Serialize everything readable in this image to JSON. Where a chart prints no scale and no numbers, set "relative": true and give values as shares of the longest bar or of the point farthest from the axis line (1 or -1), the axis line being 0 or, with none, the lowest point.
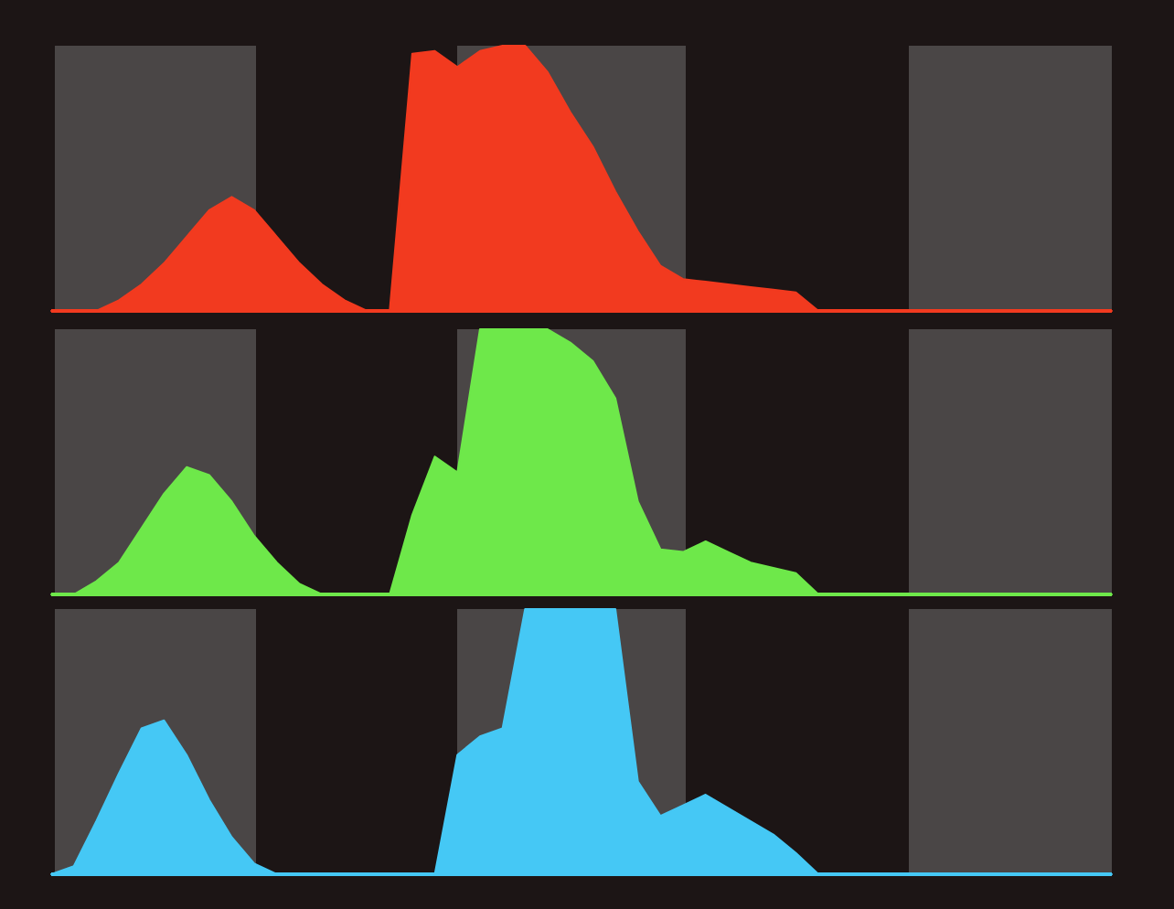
{
  "chart_data": [
    {
      "type": "area",
      "relative": true,
      "categories": [
        null,
        null,
        null,
        null,
        null,
        null,
        null,
        null,
        null,
        null,
        null,
        null,
        null,
        null,
        null,
        null,
        null,
        null,
        null,
        null,
        null,
        null,
        null,
        null,
        null,
        null,
        null,
        null,
        null,
        null,
        null,
        null,
        null,
        null,
        null,
        null,
        null,
        null,
        null,
        null,
        null,
        null,
        null,
        null,
        null,
        null,
        null,
        null
      ],
      "series": [
        {
          "color": "#f23a1f",
          "values": [
            0,
            0,
            0,
            0.04,
            0.1,
            0.18,
            0.28,
            0.38,
            0.43,
            0.38,
            0.28,
            0.18,
            0.1,
            0.04,
            0,
            0,
            0.97,
            0.98,
            0.92,
            0.98,
            1,
            1,
            0.9,
            0.75,
            0.62,
            0.45,
            0.3,
            0.17,
            0.12,
            0.11,
            0.1,
            0.09,
            0.08,
            0.07,
            0,
            0,
            0,
            0,
            0,
            0,
            0,
            0,
            0,
            0,
            0,
            0,
            0,
            0
          ]
        }
      ]
    },
    {
      "type": "area",
      "relative": true,
      "categories": [
        null,
        null,
        null,
        null,
        null,
        null,
        null,
        null,
        null,
        null,
        null,
        null,
        null,
        null,
        null,
        null,
        null,
        null,
        null,
        null,
        null,
        null,
        null,
        null,
        null,
        null,
        null,
        null,
        null,
        null,
        null,
        null,
        null,
        null,
        null,
        null,
        null,
        null,
        null,
        null,
        null,
        null,
        null,
        null,
        null,
        null,
        null,
        null
      ],
      "series": [
        {
          "color": "#6ee84a",
          "values": [
            0,
            0,
            0.05,
            0.12,
            0.25,
            0.38,
            0.48,
            0.45,
            0.35,
            0.22,
            0.12,
            0.04,
            0,
            0,
            0,
            0,
            0.3,
            0.52,
            0.46,
            1,
            1,
            1,
            1,
            0.95,
            0.88,
            0.74,
            0.35,
            0.17,
            0.16,
            0.2,
            0.16,
            0.12,
            0.1,
            0.08,
            0,
            0,
            0,
            0,
            0,
            0,
            0,
            0,
            0,
            0,
            0,
            0,
            0,
            0
          ]
        }
      ]
    },
    {
      "type": "area",
      "relative": true,
      "categories": [
        null,
        null,
        null,
        null,
        null,
        null,
        null,
        null,
        null,
        null,
        null,
        null,
        null,
        null,
        null,
        null,
        null,
        null,
        null,
        null,
        null,
        null,
        null,
        null,
        null,
        null,
        null,
        null,
        null,
        null,
        null,
        null,
        null,
        null,
        null,
        null,
        null,
        null,
        null,
        null,
        null,
        null,
        null,
        null,
        null,
        null,
        null,
        null
      ],
      "series": [
        {
          "color": "#45c8f5",
          "values": [
            0,
            0.03,
            0.2,
            0.38,
            0.55,
            0.58,
            0.45,
            0.28,
            0.14,
            0.04,
            0,
            0,
            0,
            0,
            0,
            0,
            0,
            0,
            0.45,
            0.52,
            0.55,
            1,
            1,
            1,
            1,
            1,
            0.35,
            0.22,
            0.26,
            0.3,
            0.25,
            0.2,
            0.15,
            0.08,
            0,
            0,
            0,
            0,
            0,
            0,
            0,
            0,
            0,
            0,
            0,
            0,
            0,
            0
          ]
        }
      ]
    }
  ]
}
